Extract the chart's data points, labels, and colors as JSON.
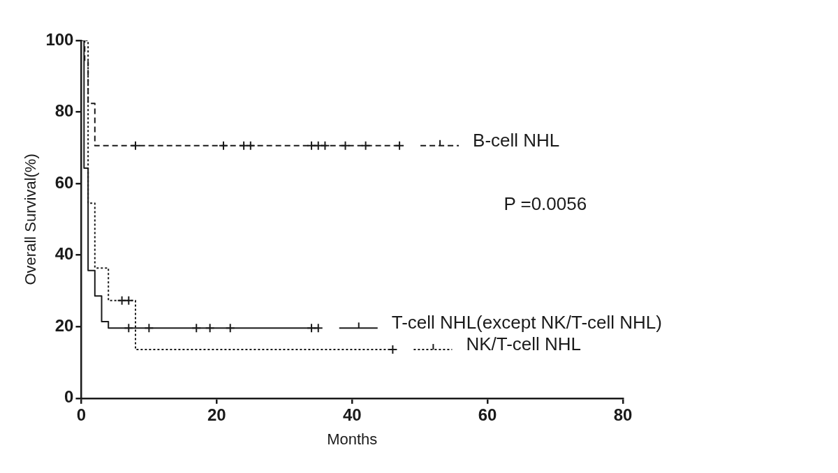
{
  "chart_data": {
    "type": "step",
    "xlabel": "Months",
    "ylabel": "Overall Survival(%)",
    "xlim": [
      0,
      80
    ],
    "xticks": [
      0,
      20,
      40,
      60,
      80
    ],
    "ylim": [
      0,
      100
    ],
    "yticks": [
      0,
      20,
      40,
      60,
      80,
      100
    ],
    "grid": false,
    "legend": "right",
    "annotations": [
      "P =0.0056"
    ],
    "series": [
      {
        "name": "B-cell NHL",
        "color": "#1a1a1a",
        "line_style": "dashed",
        "x": [
          0,
          0.5,
          1,
          2,
          47
        ],
        "values": [
          100,
          94.1,
          82.4,
          70.6,
          70.6
        ]
      },
      {
        "name": "T-cell NHL(except NK/T-cell NHL)",
        "color": "#1a1a1a",
        "line_style": "solid",
        "x": [
          0,
          0.4,
          1,
          2,
          3,
          4,
          35
        ],
        "values": [
          100,
          64.3,
          35.7,
          28.6,
          21.4,
          19.6,
          19.6
        ]
      },
      {
        "name": "NK/T-cell NHL",
        "color": "#1a1a1a",
        "line_style": "dotted",
        "x": [
          0,
          1,
          2,
          4,
          8,
          46
        ],
        "values": [
          100,
          54.5,
          36.4,
          27.3,
          13.6,
          13.6
        ]
      },
      {
        "type": "scatter",
        "color": "#1a1a1a",
        "marker": "cross",
        "x": [
          8,
          21,
          24,
          25,
          34,
          35,
          36,
          39,
          42,
          47
        ],
        "values": [
          70.6,
          70.6,
          70.6,
          70.6,
          70.6,
          70.6,
          70.6,
          70.6,
          70.6,
          70.6
        ]
      },
      {
        "type": "scatter",
        "color": "#1a1a1a",
        "marker": "cross",
        "x": [
          7,
          10,
          17,
          19,
          22,
          34,
          35
        ],
        "values": [
          19.6,
          19.6,
          19.6,
          19.6,
          19.6,
          19.6,
          19.6
        ]
      },
      {
        "type": "scatter",
        "color": "#1a1a1a",
        "marker": "cross",
        "x": [
          6,
          7,
          46
        ],
        "values": [
          27.3,
          27.3,
          13.6
        ]
      }
    ]
  }
}
